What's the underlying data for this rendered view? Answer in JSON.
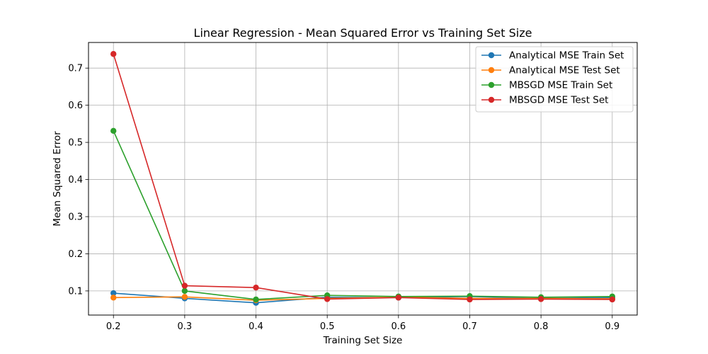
{
  "chart_data": {
    "type": "line",
    "title": "Linear Regression - Mean Squared Error vs Training Set Size",
    "xlabel": "Training Set Size",
    "ylabel": "Mean Squared Error",
    "x": [
      0.2,
      0.3,
      0.4,
      0.5,
      0.6,
      0.7,
      0.8,
      0.9
    ],
    "xticks": [
      "0.2",
      "0.3",
      "0.4",
      "0.5",
      "0.6",
      "0.7",
      "0.8",
      "0.9"
    ],
    "yticks": [
      "0.1",
      "0.2",
      "0.3",
      "0.4",
      "0.5",
      "0.6",
      "0.7"
    ],
    "xlim": [
      0.165,
      0.935
    ],
    "ylim": [
      0.035,
      0.769
    ],
    "grid": true,
    "legend_position": "top-right",
    "series": [
      {
        "name": "Analytical MSE Train Set",
        "color": "#1f77b4",
        "values": [
          0.094,
          0.08,
          0.068,
          0.083,
          0.082,
          0.085,
          0.08,
          0.082
        ]
      },
      {
        "name": "Analytical MSE Test Set",
        "color": "#ff7f0e",
        "values": [
          0.082,
          0.084,
          0.075,
          0.08,
          0.083,
          0.08,
          0.08,
          0.079
        ]
      },
      {
        "name": "MBSGD MSE Train Set",
        "color": "#2ca02c",
        "values": [
          0.531,
          0.1,
          0.077,
          0.088,
          0.085,
          0.086,
          0.083,
          0.085
        ]
      },
      {
        "name": "MBSGD MSE Test Set",
        "color": "#d62728",
        "values": [
          0.738,
          0.114,
          0.109,
          0.078,
          0.082,
          0.077,
          0.078,
          0.077
        ]
      }
    ]
  }
}
